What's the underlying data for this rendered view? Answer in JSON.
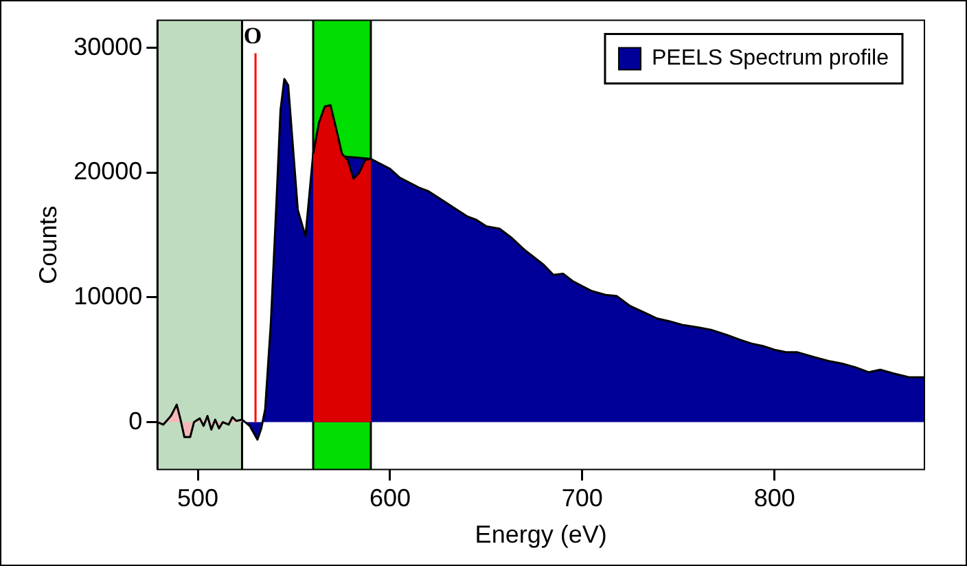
{
  "chart_data": {
    "type": "area",
    "xlabel": "Energy (eV)",
    "ylabel": "Counts",
    "xlim": [
      479,
      878
    ],
    "ylim": [
      -3800,
      32200
    ],
    "xticks": [
      500,
      600,
      700,
      800
    ],
    "yticks": [
      0,
      10000,
      20000,
      30000
    ],
    "grid": false,
    "legend": "top right",
    "marker": "none",
    "series": [
      {
        "color": "#f4b8b8",
        "x": [
          479,
          482,
          486,
          489,
          491,
          493,
          496,
          498,
          501,
          503,
          505,
          507,
          509,
          511,
          513,
          516,
          518,
          520,
          523
        ],
        "values": [
          0,
          -200,
          500,
          1400,
          200,
          -1200,
          -1200,
          0,
          300,
          -300,
          500,
          -600,
          200,
          -500,
          0,
          -200,
          400,
          100,
          200
        ]
      },
      {
        "name": "PEELS Spectrum profile",
        "color": "#000099",
        "x": [
          523,
          527,
          531,
          533,
          535,
          538,
          541,
          543,
          545,
          547,
          549,
          552,
          556,
          560,
          590,
          595,
          600,
          605,
          610,
          615,
          620,
          625,
          629,
          635,
          640,
          645,
          650,
          657,
          663,
          670,
          675,
          680,
          685,
          690,
          695,
          700,
          705,
          712,
          718,
          725,
          732,
          739,
          745,
          752,
          760,
          767,
          775,
          782,
          788,
          794,
          800,
          806,
          812,
          821,
          828,
          835,
          842,
          849,
          855,
          862,
          870,
          878
        ],
        "values": [
          200,
          -300,
          -1400,
          -500,
          1000,
          8000,
          18000,
          25000,
          27500,
          27000,
          23000,
          17000,
          14900,
          21500,
          21100,
          20700,
          20300,
          19600,
          19200,
          18800,
          18500,
          18000,
          17600,
          17000,
          16500,
          16200,
          15700,
          15500,
          14800,
          13800,
          13200,
          12600,
          11800,
          11900,
          11300,
          10900,
          10500,
          10200,
          10100,
          9300,
          8800,
          8300,
          8100,
          7800,
          7600,
          7400,
          7000,
          6600,
          6300,
          6100,
          5800,
          5600,
          5600,
          5200,
          4900,
          4700,
          4400,
          4000,
          4200,
          3900,
          3600,
          3600
        ]
      },
      {
        "color": "#dd0000",
        "x": [
          560,
          563,
          566,
          569,
          572,
          575,
          578,
          581,
          584,
          587,
          590
        ],
        "values": [
          21500,
          24000,
          25300,
          25400,
          23500,
          21500,
          21000,
          19500,
          20000,
          21000,
          21100
        ]
      }
    ],
    "bands": [
      {
        "axis": "x",
        "from": 479,
        "to": 523,
        "color": "#c0dcc0"
      },
      {
        "axis": "x",
        "from": 560,
        "to": 590,
        "color": "#00dd00"
      }
    ],
    "ref_lines": [
      {
        "axis": "x",
        "value": 530,
        "label": "O",
        "color": "#ff0000"
      }
    ]
  }
}
